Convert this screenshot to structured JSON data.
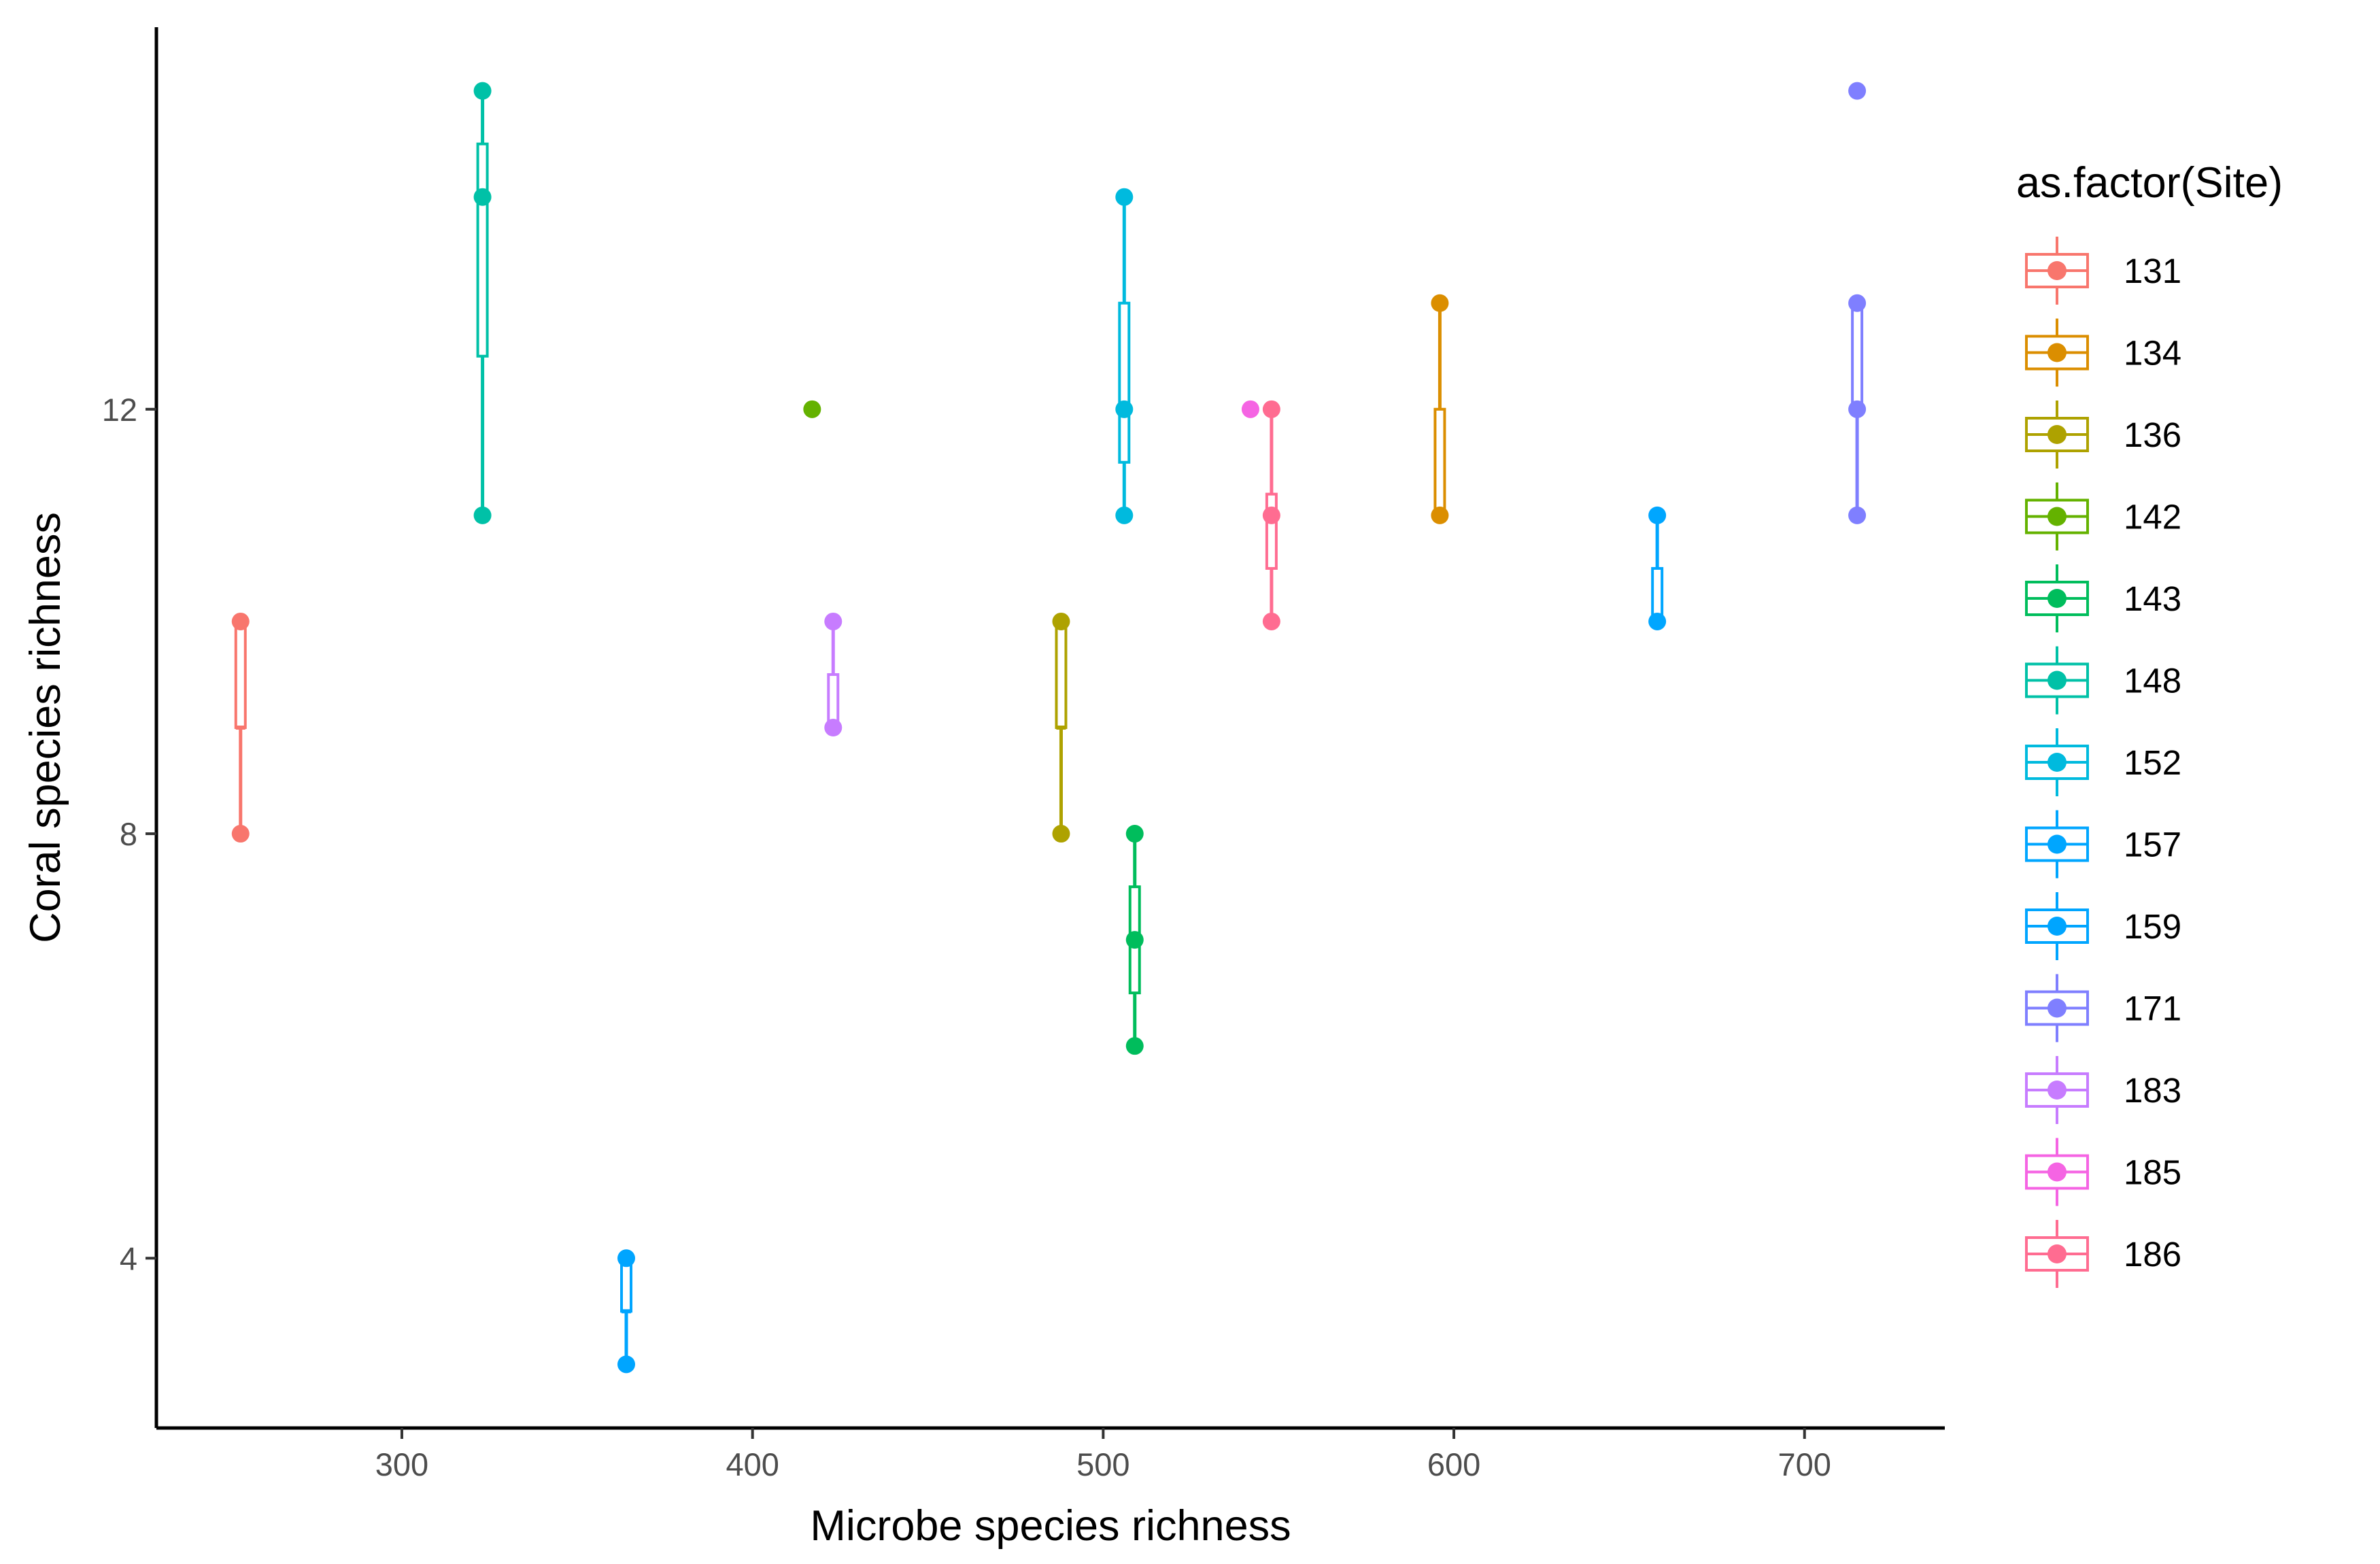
{
  "chart_data": {
    "type": "boxplot",
    "title": "",
    "xlabel": "Microbe species richness",
    "ylabel": "Coral species richness",
    "xlim": [
      230,
      740
    ],
    "ylim": [
      2.4,
      15.6
    ],
    "xticks": [
      300,
      400,
      500,
      600,
      700
    ],
    "yticks": [
      4,
      8,
      12
    ],
    "grid": false,
    "legend": {
      "title": "as.factor(Site)",
      "position": "right"
    },
    "series": [
      {
        "name": "131",
        "color": "#F8766D",
        "x": 254,
        "points": [
          10,
          8
        ],
        "box": {
          "min": 8,
          "q1": 9,
          "median": 9,
          "q3": 10,
          "max": 10
        }
      },
      {
        "name": "134",
        "color": "#DB8E00",
        "x": 596,
        "points": [
          13,
          11
        ],
        "box": {
          "min": 11,
          "q1": 11,
          "median": 11,
          "q3": 12,
          "max": 13
        }
      },
      {
        "name": "136",
        "color": "#AEA200",
        "x": 488,
        "points": [
          10,
          8
        ],
        "box": {
          "min": 8,
          "q1": 9,
          "median": 9,
          "q3": 10,
          "max": 10
        }
      },
      {
        "name": "142",
        "color": "#64B200",
        "x": 417,
        "points": [
          12
        ],
        "box": null
      },
      {
        "name": "143",
        "color": "#00BD5C",
        "x": 509,
        "points": [
          8,
          7,
          6
        ],
        "box": {
          "min": 6,
          "q1": 6.5,
          "median": 7,
          "q3": 7.5,
          "max": 8
        }
      },
      {
        "name": "148",
        "color": "#00C1A7",
        "x": 323,
        "points": [
          15,
          14,
          11
        ],
        "box": {
          "min": 11,
          "q1": 12.5,
          "median": 14,
          "q3": 14.5,
          "max": 15
        }
      },
      {
        "name": "152",
        "color": "#00BADE",
        "x": 506,
        "points": [
          14,
          12,
          11
        ],
        "box": {
          "min": 11,
          "q1": 11.5,
          "median": 12,
          "q3": 13,
          "max": 14
        }
      },
      {
        "name": "157",
        "color": "#00A6FF",
        "x": 658,
        "points": [
          11,
          10
        ],
        "box": {
          "min": 10,
          "q1": 10,
          "median": 10,
          "q3": 10.5,
          "max": 11
        }
      },
      {
        "name": "159",
        "color": "#00A5FF",
        "x": 364,
        "points": [
          4,
          3
        ],
        "box": {
          "min": 3,
          "q1": 3.5,
          "median": 3.5,
          "q3": 4,
          "max": 4
        }
      },
      {
        "name": "171",
        "color": "#7F7FFF",
        "x": 715,
        "points": [
          15,
          13,
          12,
          11
        ],
        "box": {
          "min": 11,
          "q1": 12,
          "median": 12,
          "q3": 13,
          "max": 13
        }
      },
      {
        "name": "183",
        "color": "#C77CFF",
        "x": 423,
        "points": [
          10,
          9
        ],
        "box": {
          "min": 9,
          "q1": 9,
          "median": 9,
          "q3": 9.5,
          "max": 10
        }
      },
      {
        "name": "185",
        "color": "#F564E3",
        "x": 542,
        "points": [
          12
        ],
        "box": null
      },
      {
        "name": "186",
        "color": "#FF6C91",
        "x": 548,
        "points": [
          12,
          11,
          10
        ],
        "box": {
          "min": 10,
          "q1": 10.5,
          "median": 11,
          "q3": 11.2,
          "max": 12
        }
      }
    ]
  }
}
